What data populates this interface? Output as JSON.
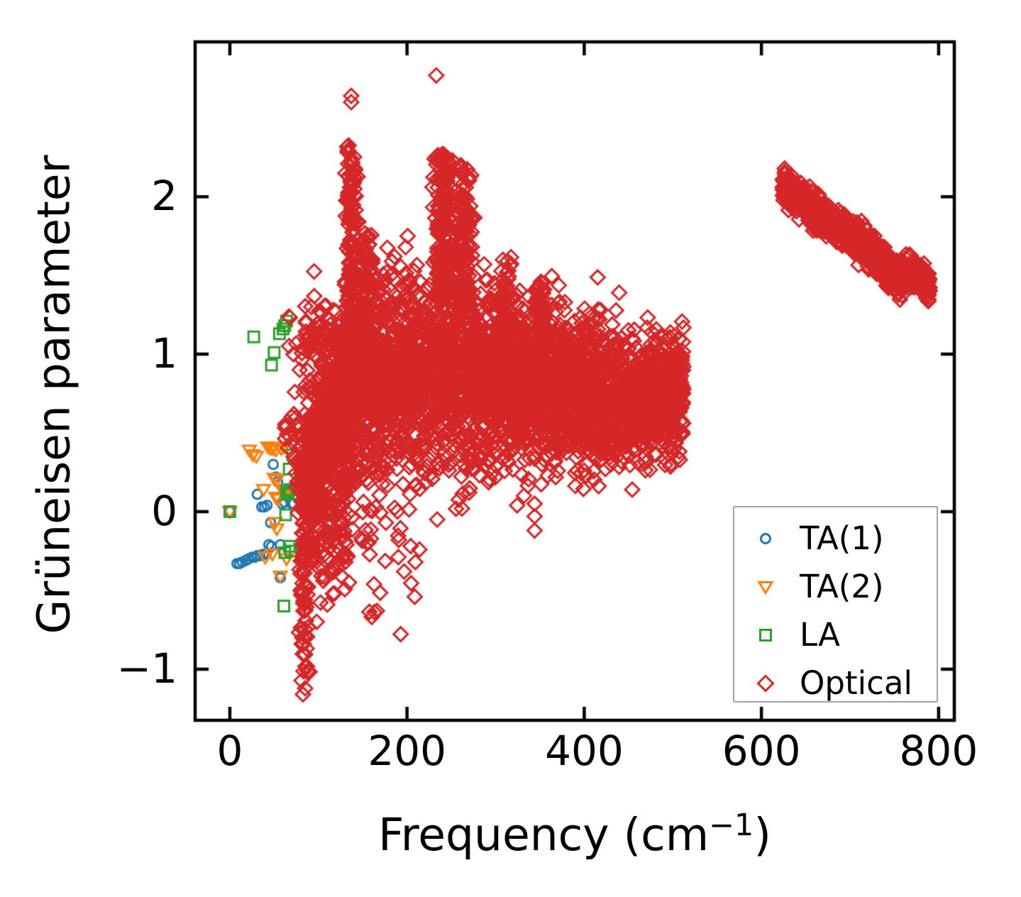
{
  "figure": {
    "background": "#ffffff",
    "axis_color": "#000000",
    "legend_border_color": "#a6a6a6"
  },
  "chart_data": {
    "type": "scatter",
    "title": "",
    "xlabel": {
      "pre": "Frequency (cm",
      "sup": "−1",
      "post": ")"
    },
    "ylabel": "Grüneisen parameter",
    "xlim": [
      -39.2,
      817.7
    ],
    "ylim": [
      -1.325,
      2.983
    ],
    "x_ticks": [
      0,
      200,
      400,
      600,
      800
    ],
    "y_ticks": [
      -1,
      0,
      1,
      2
    ],
    "grid": false,
    "legend_position": "lower right",
    "series": [
      {
        "name": "TA(1)",
        "marker": "circle",
        "color": "#1f77b4",
        "points": [
          [
            0,
            0
          ],
          [
            8,
            -0.33
          ],
          [
            11,
            -0.33
          ],
          [
            14,
            -0.32
          ],
          [
            18,
            -0.31
          ],
          [
            21,
            -0.3
          ],
          [
            25,
            -0.29
          ],
          [
            28,
            -0.29
          ],
          [
            31,
            -0.28
          ],
          [
            34,
            -0.28
          ],
          [
            38,
            -0.27
          ],
          [
            41,
            -0.27
          ],
          [
            44,
            -0.21
          ],
          [
            47,
            -0.22
          ],
          [
            31,
            0.11
          ],
          [
            36,
            0.03
          ],
          [
            39,
            0.03
          ],
          [
            42,
            0.04
          ],
          [
            46,
            -0.07
          ],
          [
            49,
            0.3
          ],
          [
            52,
            0.22
          ],
          [
            54,
            0.19
          ],
          [
            57,
            -0.21
          ],
          [
            57,
            -0.42
          ],
          [
            59,
            0.05
          ],
          [
            62,
            0.06
          ],
          [
            65,
            0.13
          ],
          [
            67,
            0.12
          ],
          [
            70,
            0.05
          ],
          [
            72,
            0.05
          ]
        ]
      },
      {
        "name": "TA(2)",
        "marker": "triangle-down",
        "color": "#ff7f0e",
        "points": [
          [
            0,
            0
          ],
          [
            22,
            0.39
          ],
          [
            26,
            0.36
          ],
          [
            30,
            0.35
          ],
          [
            43,
            0.41
          ],
          [
            46,
            0.4
          ],
          [
            49,
            0.4
          ],
          [
            52,
            0.39
          ],
          [
            58,
            0.4
          ],
          [
            61,
            0.41
          ],
          [
            38,
            0.14
          ],
          [
            50,
            0.21
          ],
          [
            53,
            0.2
          ],
          [
            52,
            0.09
          ],
          [
            55,
            0.08
          ],
          [
            51,
            -0.07
          ],
          [
            53,
            -0.11
          ],
          [
            40,
            -0.29
          ],
          [
            48,
            -0.27
          ],
          [
            57,
            -0.41
          ],
          [
            60,
            0.13
          ],
          [
            62,
            0.12
          ],
          [
            64,
            -0.3
          ],
          [
            66,
            0.14
          ]
        ]
      },
      {
        "name": "LA",
        "marker": "square",
        "color": "#2ca02c",
        "points": [
          [
            0,
            0
          ],
          [
            27,
            1.11
          ],
          [
            47,
            0.93
          ],
          [
            50,
            1.01
          ],
          [
            56,
            1.13
          ],
          [
            60,
            1.16
          ],
          [
            62,
            1.18
          ],
          [
            64,
            1.21
          ],
          [
            71,
            0.36
          ],
          [
            67,
            0.27
          ],
          [
            63,
            -0.02
          ],
          [
            67,
            -0.22
          ],
          [
            62,
            -0.26
          ],
          [
            69,
            -0.25
          ],
          [
            61,
            -0.6
          ],
          [
            64,
            0.13
          ],
          [
            66,
            0.12
          ],
          [
            68,
            0.14
          ],
          [
            65,
            0.11
          ]
        ]
      },
      {
        "name": "Optical",
        "marker": "diamond",
        "color": "#d62728",
        "points": [
          [
            233,
            2.77
          ],
          [
            137,
            2.64
          ],
          [
            137,
            2.6
          ],
          [
            234,
            -0.05
          ],
          [
            344,
            0.05
          ],
          [
            344,
            -0.03
          ],
          [
            344,
            -0.12
          ],
          [
            211,
            0.17
          ],
          [
            110,
            -0.16
          ],
          [
            127,
            -0.3
          ],
          [
            126,
            -0.41
          ],
          [
            110,
            -0.59
          ],
          [
            155,
            -0.2
          ],
          [
            166,
            -0.63
          ],
          [
            118,
            -0.52
          ],
          [
            98,
            -0.7
          ],
          [
            262,
            0.02
          ],
          [
            287,
            1.57
          ],
          [
            289,
            1.47
          ],
          [
            348,
            1.43
          ],
          [
            379,
            1.09
          ],
          [
            401,
            1.03
          ],
          [
            177,
            1.52
          ],
          [
            181,
            1.41
          ],
          [
            207,
            1.3
          ],
          [
            221,
            1.22
          ],
          [
            86,
            1.21
          ],
          [
            92,
            1.3
          ],
          [
            104,
            1.26
          ],
          [
            231,
            2.24
          ],
          [
            251,
            2.23
          ]
        ],
        "cloud_approximation": {
          "seed": 42,
          "bands": [
            {
              "x": [
                88,
                512
              ],
              "path": [
                [
                  88,
                  0.38
                ],
                [
                  110,
                  0.6
                ],
                [
                  140,
                  0.75
                ],
                [
                  180,
                  0.85
                ],
                [
                  240,
                  0.9
                ],
                [
                  300,
                  0.84
                ],
                [
                  360,
                  0.78
                ],
                [
                  420,
                  0.7
                ],
                [
                  470,
                  0.73
                ],
                [
                  512,
                  0.78
                ]
              ],
              "sd": 0.2,
              "n": 3000
            },
            {
              "x": [
                95,
                450
              ],
              "path": [
                [
                  95,
                  0.2
                ],
                [
                  150,
                  0.32
                ],
                [
                  220,
                  0.42
                ],
                [
                  300,
                  0.44
                ],
                [
                  380,
                  0.55
                ],
                [
                  450,
                  0.6
                ]
              ],
              "sd": 0.16,
              "n": 380
            },
            {
              "x": [
                85,
                420
              ],
              "path": [
                [
                  85,
                  1.05
                ],
                [
                  160,
                  1.25
                ],
                [
                  220,
                  1.28
                ],
                [
                  280,
                  1.18
                ],
                [
                  340,
                  1.08
                ],
                [
                  420,
                  0.98
                ]
              ],
              "sd": 0.2,
              "n": 420
            },
            {
              "x": [
                82,
                135
              ],
              "path": [
                [
                  82,
                  -0.05
                ],
                [
                  135,
                  0.3
                ]
              ],
              "sd": 0.3,
              "n": 280
            },
            {
              "x": [
                95,
                215
              ],
              "path": [
                [
                  95,
                  -0.25
                ],
                [
                  215,
                  -0.18
                ]
              ],
              "sd": 0.2,
              "n": 40
            },
            {
              "x": [
                452,
                508
              ],
              "path": [
                [
                  452,
                  0.66
                ],
                [
                  508,
                  0.8
                ]
              ],
              "sd": 0.09,
              "n": 260
            },
            {
              "x": [
                624,
                790
              ],
              "path": [
                [
                  624,
                  2.06
                ],
                [
                  655,
                  1.92
                ],
                [
                  690,
                  1.8
                ],
                [
                  715,
                  1.7
                ],
                [
                  737,
                  1.58
                ],
                [
                  755,
                  1.47
                ],
                [
                  770,
                  1.52
                ],
                [
                  790,
                  1.42
                ]
              ],
              "sd": 0.05,
              "n": 1150
            },
            {
              "x": [
                66,
                122
              ],
              "path": [
                [
                  66,
                  1.02
                ],
                [
                  122,
                  1.22
                ]
              ],
              "sd": 0.1,
              "n": 26
            },
            {
              "x": [
                62,
                84
              ],
              "path": [
                [
                  62,
                  0.5
                ],
                [
                  84,
                  0.45
                ]
              ],
              "sd": 0.12,
              "n": 28
            }
          ],
          "spikes": [
            {
              "cx": 137,
              "sx": 3.2,
              "y0": 1.05,
              "y1": 2.33,
              "pw": 1.4,
              "n": 170
            },
            {
              "cx": 155,
              "sx": 4,
              "y0": 0.95,
              "y1": 1.78,
              "pw": 1.3,
              "n": 90
            },
            {
              "cx": 241,
              "sx": 4.5,
              "y0": 1.35,
              "y1": 2.27,
              "pw": 1.35,
              "n": 210
            },
            {
              "cx": 264,
              "sx": 4.5,
              "y0": 1.3,
              "y1": 2.2,
              "pw": 1.35,
              "n": 150
            },
            {
              "cx": 311,
              "sx": 4,
              "y0": 0.95,
              "y1": 1.63,
              "pw": 1.2,
              "n": 80
            },
            {
              "cx": 350,
              "sx": 4,
              "y0": 0.95,
              "y1": 1.46,
              "pw": 1.2,
              "n": 80
            },
            {
              "cx": 84,
              "sx": 2.8,
              "y0": 0.35,
              "y1": -1.18,
              "pw": 1.7,
              "n": 120
            }
          ]
        }
      }
    ]
  }
}
